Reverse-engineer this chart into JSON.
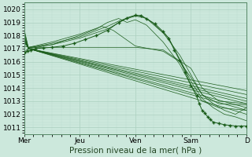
{
  "title": "Pression niveau de la mer( hPa )",
  "bg_color": "#cce8dc",
  "grid_major_color": "#aacfbf",
  "grid_minor_color": "#bdddd0",
  "line_color": "#1a5c1a",
  "xlim": [
    0,
    4.0
  ],
  "ylim": [
    1010.5,
    1020.5
  ],
  "yticks": [
    1011,
    1012,
    1013,
    1014,
    1015,
    1016,
    1017,
    1018,
    1019,
    1020
  ],
  "xtick_labels": [
    "Mer",
    "Jeu",
    "Ven",
    "Sam",
    "D"
  ],
  "xtick_positions": [
    0,
    1,
    2,
    3,
    4
  ],
  "label_fontsize": 7.5,
  "tick_fontsize": 6.5
}
